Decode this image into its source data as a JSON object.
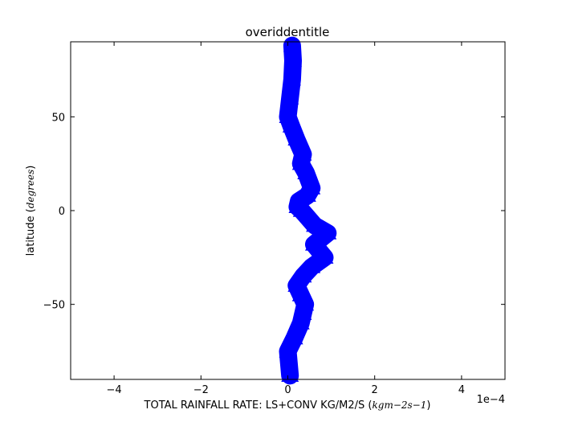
{
  "chart_data": {
    "type": "line",
    "title": "overiddentitle",
    "xlabel": {
      "text": "TOTAL RAINFALL RATE: LS+CONV KG/M2/S (",
      "math": "kgm−2s−1",
      "close": ")"
    },
    "ylabel": {
      "text": "latitude (",
      "math": "degrees",
      "close": ")"
    },
    "x_offset_label": "1e−4",
    "x_scale": 0.0001,
    "xlim": [
      -5,
      5
    ],
    "ylim": [
      -90,
      90
    ],
    "xticks": [
      -4,
      -2,
      0,
      2,
      4
    ],
    "xtick_labels": [
      "−4",
      "−2",
      "0",
      "2",
      "4"
    ],
    "yticks": [
      -50,
      0,
      50
    ],
    "ytick_labels": [
      "−50",
      "0",
      "50"
    ],
    "grid": false,
    "series": [
      {
        "color": "#0000ff",
        "marker": "triangle-up",
        "x": [
          0.1,
          0.12,
          0.1,
          0.05,
          0.0,
          0.08,
          0.2,
          0.35,
          0.3,
          0.42,
          0.55,
          0.45,
          0.25,
          0.22,
          0.32,
          0.62,
          0.92,
          0.6,
          0.85,
          0.55,
          0.35,
          0.2,
          0.3,
          0.4,
          0.35,
          0.3,
          0.15,
          0.0,
          0.05
        ],
        "y": [
          88,
          80,
          70,
          60,
          50,
          45,
          38,
          30,
          25,
          20,
          12,
          8,
          5,
          2,
          0,
          -8,
          -12,
          -18,
          -25,
          -30,
          -35,
          -40,
          -45,
          -50,
          -55,
          -60,
          -68,
          -75,
          -88
        ]
      }
    ]
  }
}
